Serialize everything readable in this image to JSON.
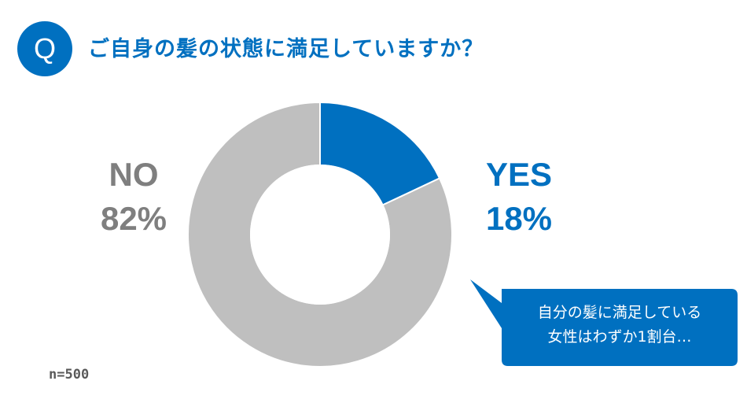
{
  "header": {
    "badge_label": "Q",
    "question": "ご自身の髪の状態に満足していますか？"
  },
  "chart_data": {
    "type": "pie",
    "variant": "donut",
    "slices": [
      {
        "label": "YES",
        "value": 18,
        "display": "18%",
        "color": "#0070c0"
      },
      {
        "label": "NO",
        "value": 82,
        "display": "82%",
        "color": "#bfbfbf"
      }
    ],
    "sample_size": "n=500"
  },
  "callout": {
    "line1": "自分の髪に満足している",
    "line2": "女性はわずか1割台…",
    "color": "#0070c0"
  }
}
